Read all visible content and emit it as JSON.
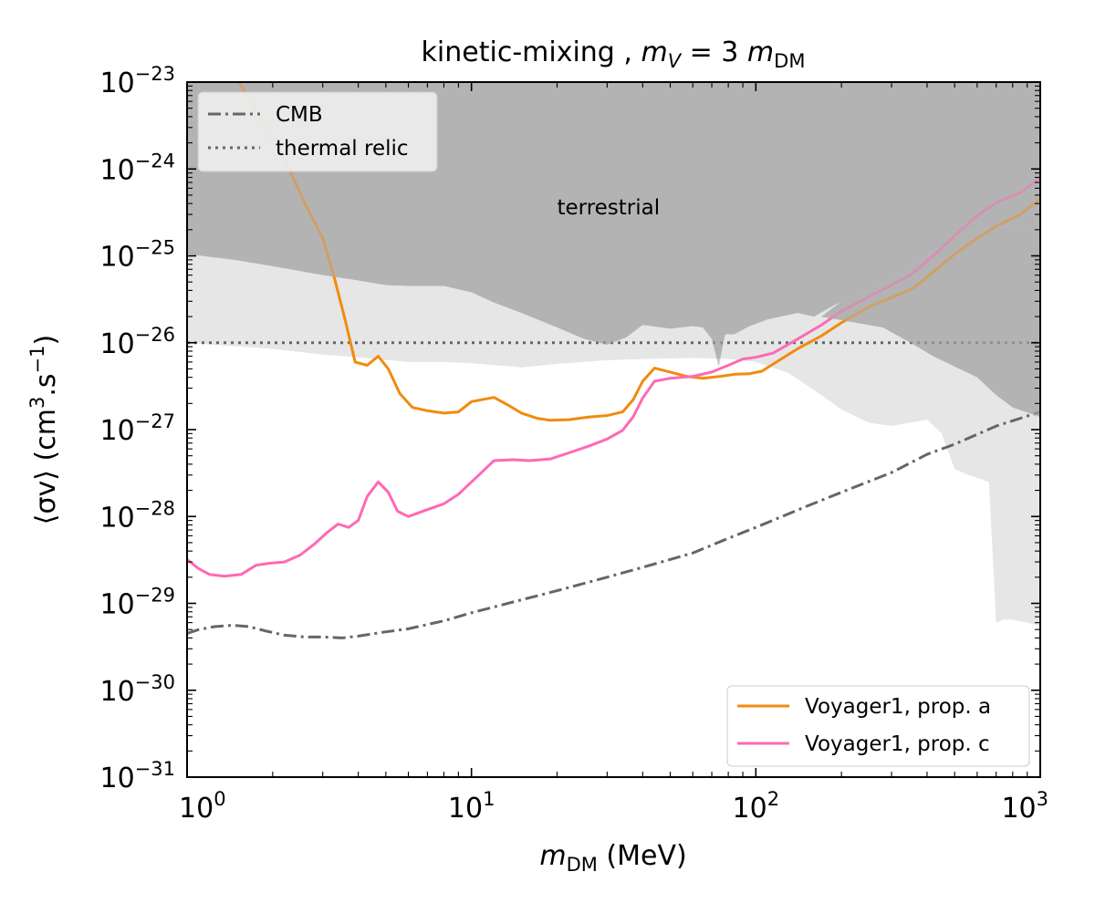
{
  "chart_data": {
    "type": "line",
    "title": "kinetic-mixing ,  m_V = 3 m_DM",
    "title_parts": {
      "prefix": "kinetic-mixing ,  ",
      "m": "m",
      "v_sub": "V",
      "eq": " = 3 ",
      "dm_sub": "DM"
    },
    "xlabel": "m_DM (MeV)",
    "xlabel_parts": {
      "m": "m",
      "sub": "DM",
      "unit": " (MeV)"
    },
    "ylabel": "⟨σv⟩ (cm³.s⁻¹)",
    "ylabel_parts": {
      "sigv": "⟨σv⟩",
      "unit_a": " (cm",
      "sup3": "3",
      "unit_b": ".s",
      "supm1": "−1",
      "unit_c": ")"
    },
    "xscale": "log",
    "yscale": "log",
    "xlim": [
      1,
      1000
    ],
    "ylim": [
      1e-31,
      1e-23
    ],
    "x_ticks": [
      {
        "value": 1,
        "base": "10",
        "exp": "0"
      },
      {
        "value": 10,
        "base": "10",
        "exp": "1"
      },
      {
        "value": 100,
        "base": "10",
        "exp": "2"
      },
      {
        "value": 1000,
        "base": "10",
        "exp": "3"
      }
    ],
    "y_ticks": [
      {
        "value": 1e-31,
        "base": "10",
        "exp": "−31"
      },
      {
        "value": 1e-30,
        "base": "10",
        "exp": "−30"
      },
      {
        "value": 1e-29,
        "base": "10",
        "exp": "−29"
      },
      {
        "value": 1e-28,
        "base": "10",
        "exp": "−28"
      },
      {
        "value": 1e-27,
        "base": "10",
        "exp": "−27"
      },
      {
        "value": 1e-26,
        "base": "10",
        "exp": "−26"
      },
      {
        "value": 1e-25,
        "base": "10",
        "exp": "−25"
      },
      {
        "value": 1e-24,
        "base": "10",
        "exp": "−24"
      },
      {
        "value": 1e-23,
        "base": "10",
        "exp": "−23"
      }
    ],
    "regions": [
      {
        "name": "terrestrial",
        "label": "terrestrial",
        "label_at": {
          "x": 20,
          "y": 3e-25
        },
        "color": "#b3b3b3",
        "upper": 1e-23,
        "lower": [
          [
            1,
            1.05e-25
          ],
          [
            1.5,
            8.9e-26
          ],
          [
            2,
            7.6e-26
          ],
          [
            3,
            6e-26
          ],
          [
            4,
            5.2e-26
          ],
          [
            5,
            4.6e-26
          ],
          [
            6,
            4.5e-26
          ],
          [
            8,
            4.5e-26
          ],
          [
            10,
            3.8e-26
          ],
          [
            12,
            2.9e-26
          ],
          [
            15,
            2.2e-26
          ],
          [
            20,
            1.5e-26
          ],
          [
            25,
            1.1e-26
          ],
          [
            30,
            9.5e-27
          ],
          [
            35,
            1.15e-26
          ],
          [
            40,
            1.6e-26
          ],
          [
            50,
            1.45e-26
          ],
          [
            60,
            1.55e-26
          ],
          [
            65,
            1.5e-26
          ],
          [
            70,
            1.1e-26
          ],
          [
            74,
            5.3e-27
          ],
          [
            78,
            1.25e-26
          ],
          [
            84,
            1.25e-26
          ],
          [
            95,
            1.55e-26
          ],
          [
            110,
            1.85e-26
          ],
          [
            140,
            2.2e-26
          ],
          [
            160,
            2e-26
          ],
          [
            200,
            3e-26
          ],
          [
            300,
            5.5e-26
          ],
          [
            400,
            1e-25
          ],
          [
            500,
            1.6e-25
          ],
          [
            600,
            2e-25
          ],
          [
            800,
            2.2e-25
          ],
          [
            1000,
            2.3e-25
          ]
        ]
      },
      {
        "name": "light-exclusion",
        "color": "#e6e6e6",
        "upper": [
          [
            1,
            1.05e-25
          ],
          [
            1.5,
            8.9e-26
          ],
          [
            2,
            7.6e-26
          ],
          [
            3,
            6e-26
          ],
          [
            4,
            5.2e-26
          ],
          [
            5,
            4.6e-26
          ],
          [
            6,
            4.5e-26
          ],
          [
            8,
            4.5e-26
          ],
          [
            10,
            3.8e-26
          ],
          [
            12,
            2.9e-26
          ],
          [
            15,
            2.2e-26
          ],
          [
            20,
            1.5e-26
          ],
          [
            25,
            1.1e-26
          ],
          [
            30,
            9.5e-27
          ],
          [
            35,
            1.15e-26
          ],
          [
            40,
            1.6e-26
          ],
          [
            50,
            1.45e-26
          ],
          [
            60,
            1.55e-26
          ],
          [
            65,
            1.5e-26
          ],
          [
            70,
            1.1e-26
          ],
          [
            74,
            5.3e-27
          ],
          [
            78,
            1.25e-26
          ],
          [
            84,
            1.25e-26
          ],
          [
            95,
            1.55e-26
          ],
          [
            110,
            1.85e-26
          ],
          [
            140,
            2.2e-26
          ],
          [
            160,
            2e-26
          ],
          [
            200,
            3e-26
          ],
          [
            300,
            5.5e-26
          ],
          [
            400,
            1e-25
          ],
          [
            500,
            1.6e-25
          ],
          [
            600,
            2e-25
          ],
          [
            800,
            2.2e-25
          ],
          [
            1000,
            2.3e-25
          ]
        ],
        "lower": [
          [
            1,
            1e-26
          ],
          [
            2,
            8.5e-27
          ],
          [
            3,
            7.3e-27
          ],
          [
            4,
            6.8e-27
          ],
          [
            6,
            6e-27
          ],
          [
            8,
            6e-27
          ],
          [
            10,
            5.8e-27
          ],
          [
            15,
            5.2e-27
          ],
          [
            20,
            5.7e-27
          ],
          [
            30,
            6.3e-27
          ],
          [
            40,
            6.5e-27
          ],
          [
            60,
            6.7e-27
          ],
          [
            80,
            6.5e-27
          ],
          [
            100,
            6e-27
          ],
          [
            130,
            4.5e-27
          ],
          [
            170,
            2.5e-27
          ],
          [
            200,
            1.7e-27
          ],
          [
            250,
            1.2e-27
          ],
          [
            300,
            1.1e-27
          ],
          [
            400,
            1.3e-27
          ],
          [
            450,
            9e-28
          ],
          [
            500,
            3.5e-28
          ],
          [
            560,
            3e-28
          ],
          [
            660,
            2.5e-28
          ],
          [
            700,
            6e-30
          ],
          [
            740,
            6.5e-30
          ],
          [
            800,
            6.5e-30
          ],
          [
            900,
            6e-30
          ],
          [
            1000,
            5.5e-30
          ]
        ]
      },
      {
        "name": "upper-right-dark-band",
        "color": "#b3b3b3",
        "upper": [
          [
            170,
            2e-26
          ],
          [
            200,
            3e-26
          ],
          [
            300,
            5.5e-26
          ],
          [
            400,
            1e-25
          ],
          [
            500,
            1.6e-25
          ],
          [
            600,
            2e-25
          ],
          [
            800,
            2.2e-25
          ],
          [
            1000,
            2.3e-25
          ]
        ],
        "lower": [
          [
            170,
            2e-26
          ],
          [
            280,
            1.5e-26
          ],
          [
            350,
            1e-26
          ],
          [
            420,
            7e-27
          ],
          [
            600,
            4e-27
          ],
          [
            700,
            2.5e-27
          ],
          [
            800,
            1.8e-27
          ],
          [
            1000,
            1.4e-27
          ]
        ]
      }
    ],
    "series": [
      {
        "name": "CMB",
        "color": "#666666",
        "style": "dashdot",
        "points": [
          [
            1,
            4.5e-30
          ],
          [
            1.1,
            5e-30
          ],
          [
            1.25,
            5.4e-30
          ],
          [
            1.45,
            5.6e-30
          ],
          [
            1.65,
            5.4e-30
          ],
          [
            1.9,
            4.8e-30
          ],
          [
            2.2,
            4.3e-30
          ],
          [
            2.6,
            4.1e-30
          ],
          [
            3,
            4.1e-30
          ],
          [
            3.5,
            4e-30
          ],
          [
            4,
            4.2e-30
          ],
          [
            5,
            4.7e-30
          ],
          [
            6,
            5.1e-30
          ],
          [
            8,
            6.3e-30
          ],
          [
            10,
            7.8e-30
          ],
          [
            15,
            1.1e-29
          ],
          [
            20,
            1.4e-29
          ],
          [
            30,
            2e-29
          ],
          [
            40,
            2.6e-29
          ],
          [
            60,
            3.8e-29
          ],
          [
            80,
            5.6e-29
          ],
          [
            100,
            7.5e-29
          ],
          [
            150,
            1.3e-28
          ],
          [
            200,
            1.9e-28
          ],
          [
            300,
            3.2e-28
          ],
          [
            400,
            5.2e-28
          ],
          [
            500,
            6.8e-28
          ],
          [
            700,
            1.1e-27
          ],
          [
            1000,
            1.6e-27
          ]
        ]
      },
      {
        "name": "thermal relic",
        "color": "#666666",
        "style": "dotted",
        "points": [
          [
            1,
            1e-26
          ],
          [
            1000,
            1e-26
          ]
        ]
      },
      {
        "name": "Voyager1, prop. a",
        "color": "#f28a0e",
        "style": "solid",
        "points": [
          [
            1.5,
            1.1e-23
          ],
          [
            1.8,
            4e-24
          ],
          [
            2.2,
            1.3e-24
          ],
          [
            2.6,
            4e-25
          ],
          [
            3,
            1.6e-25
          ],
          [
            3.3,
            5.5e-26
          ],
          [
            3.6,
            1.8e-26
          ],
          [
            3.9,
            6e-27
          ],
          [
            4.3,
            5.5e-27
          ],
          [
            4.7,
            7e-27
          ],
          [
            5.1,
            5e-27
          ],
          [
            5.6,
            2.6e-27
          ],
          [
            6.2,
            1.8e-27
          ],
          [
            7,
            1.65e-27
          ],
          [
            8,
            1.55e-27
          ],
          [
            9,
            1.6e-27
          ],
          [
            10,
            2.1e-27
          ],
          [
            12,
            2.35e-27
          ],
          [
            13.5,
            1.9e-27
          ],
          [
            15,
            1.55e-27
          ],
          [
            17,
            1.35e-27
          ],
          [
            19,
            1.28e-27
          ],
          [
            22,
            1.3e-27
          ],
          [
            26,
            1.4e-27
          ],
          [
            30,
            1.45e-27
          ],
          [
            34,
            1.6e-27
          ],
          [
            37,
            2.2e-27
          ],
          [
            40,
            3.6e-27
          ],
          [
            44,
            5.1e-27
          ],
          [
            50,
            4.6e-27
          ],
          [
            57,
            4.1e-27
          ],
          [
            65,
            3.9e-27
          ],
          [
            75,
            4.1e-27
          ],
          [
            85,
            4.35e-27
          ],
          [
            95,
            4.4e-27
          ],
          [
            105,
            4.7e-27
          ],
          [
            120,
            6.2e-27
          ],
          [
            140,
            8.5e-27
          ],
          [
            170,
            1.2e-26
          ],
          [
            200,
            1.7e-26
          ],
          [
            250,
            2.6e-26
          ],
          [
            300,
            3.3e-26
          ],
          [
            360,
            4.3e-26
          ],
          [
            420,
            6.5e-26
          ],
          [
            500,
            1.05e-25
          ],
          [
            600,
            1.6e-25
          ],
          [
            700,
            2.2e-25
          ],
          [
            850,
            3e-25
          ],
          [
            1000,
            4.5e-25
          ]
        ]
      },
      {
        "name": "Voyager1, prop. c",
        "color": "#ff69b4",
        "style": "solid",
        "points": [
          [
            1,
            3.2e-29
          ],
          [
            1.1,
            2.5e-29
          ],
          [
            1.2,
            2.15e-29
          ],
          [
            1.35,
            2.05e-29
          ],
          [
            1.55,
            2.15e-29
          ],
          [
            1.75,
            2.75e-29
          ],
          [
            1.95,
            2.9e-29
          ],
          [
            2.2,
            3e-29
          ],
          [
            2.5,
            3.6e-29
          ],
          [
            2.8,
            4.8e-29
          ],
          [
            3.1,
            6.5e-29
          ],
          [
            3.4,
            8.2e-29
          ],
          [
            3.7,
            7.5e-29
          ],
          [
            4,
            9e-29
          ],
          [
            4.3,
            1.7e-28
          ],
          [
            4.7,
            2.5e-28
          ],
          [
            5.1,
            1.9e-28
          ],
          [
            5.5,
            1.15e-28
          ],
          [
            6,
            1e-28
          ],
          [
            7,
            1.2e-28
          ],
          [
            8,
            1.4e-28
          ],
          [
            9,
            1.8e-28
          ],
          [
            10.5,
            2.9e-28
          ],
          [
            12,
            4.4e-28
          ],
          [
            14,
            4.5e-28
          ],
          [
            16,
            4.4e-28
          ],
          [
            19,
            4.6e-28
          ],
          [
            22,
            5.4e-28
          ],
          [
            26,
            6.5e-28
          ],
          [
            30,
            7.8e-28
          ],
          [
            34,
            9.8e-28
          ],
          [
            37,
            1.4e-27
          ],
          [
            40,
            2.3e-27
          ],
          [
            44,
            3.6e-27
          ],
          [
            50,
            3.9e-27
          ],
          [
            60,
            4.1e-27
          ],
          [
            70,
            4.6e-27
          ],
          [
            80,
            5.5e-27
          ],
          [
            90,
            6.5e-27
          ],
          [
            100,
            6.8e-27
          ],
          [
            115,
            7.6e-27
          ],
          [
            140,
            1.1e-26
          ],
          [
            170,
            1.6e-26
          ],
          [
            200,
            2.3e-26
          ],
          [
            250,
            3.4e-26
          ],
          [
            300,
            4.6e-26
          ],
          [
            350,
            6e-26
          ],
          [
            420,
            1e-25
          ],
          [
            500,
            1.7e-25
          ],
          [
            600,
            2.9e-25
          ],
          [
            700,
            4.1e-25
          ],
          [
            850,
            5.3e-25
          ],
          [
            1000,
            8e-25
          ]
        ]
      }
    ],
    "legends": [
      {
        "placement": "top-left",
        "entries": [
          {
            "label": "CMB",
            "color": "#666666",
            "style": "dashdot"
          },
          {
            "label": "thermal relic",
            "color": "#666666",
            "style": "dotted"
          }
        ]
      },
      {
        "placement": "bottom-right",
        "entries": [
          {
            "label": "Voyager1, prop. a",
            "color": "#f28a0e",
            "style": "solid"
          },
          {
            "label": "Voyager1, prop. c",
            "color": "#ff69b4",
            "style": "solid"
          }
        ]
      }
    ],
    "overlay_alpha": 0.55
  }
}
